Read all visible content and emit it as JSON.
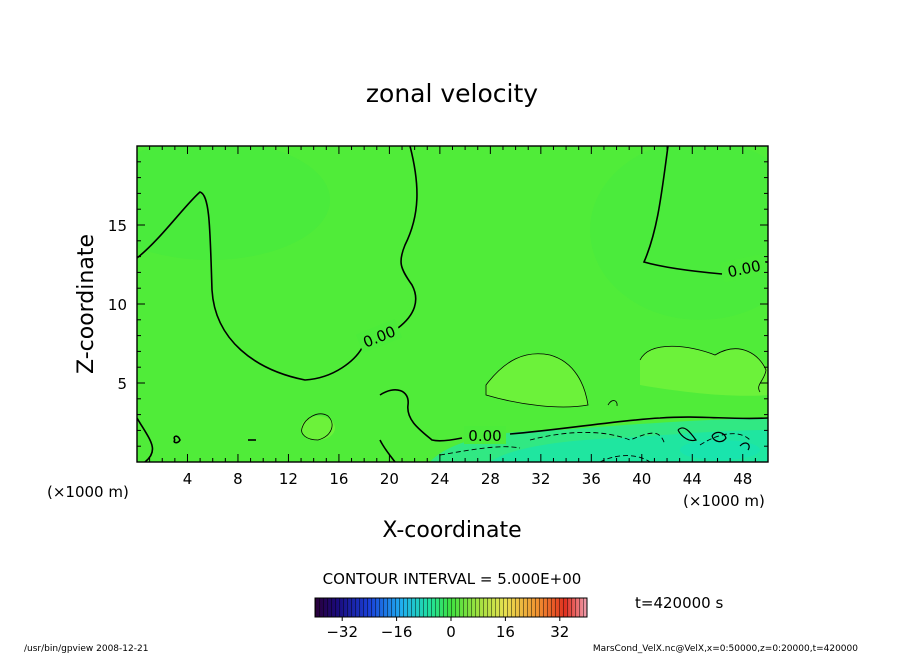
{
  "chart_data": {
    "type": "contour",
    "title": "zonal velocity",
    "xlabel": "X-coordinate",
    "ylabel": "Z-coordinate",
    "x_unit_left": "(×1000 m)",
    "x_unit_right": "(×1000 m)",
    "xlim": [
      0,
      50
    ],
    "ylim": [
      0,
      20
    ],
    "x_ticks": [
      "4",
      "8",
      "12",
      "16",
      "20",
      "24",
      "28",
      "32",
      "36",
      "40",
      "44",
      "48"
    ],
    "y_ticks": [
      "5",
      "10",
      "15"
    ],
    "contour_labels": [
      "0.00",
      "0.00",
      "0.00"
    ],
    "contour_interval_text": "CONTOUR INTERVAL = 5.000E+00",
    "colorbar": {
      "ticks": [
        "−32",
        "−16",
        "0",
        "16",
        "32"
      ],
      "range": [
        -40,
        40
      ]
    },
    "time_label": "t=420000 s",
    "colors": {
      "field_main": "#4cec3a",
      "field_positive": "#6cf23a",
      "field_negative": "#1fe6a0"
    }
  },
  "footer": {
    "left": "/usr/bin/gpview   2008-12-21",
    "right": "MarsCond_VelX.nc@VelX,x=0:50000,z=0:20000,t=420000"
  }
}
